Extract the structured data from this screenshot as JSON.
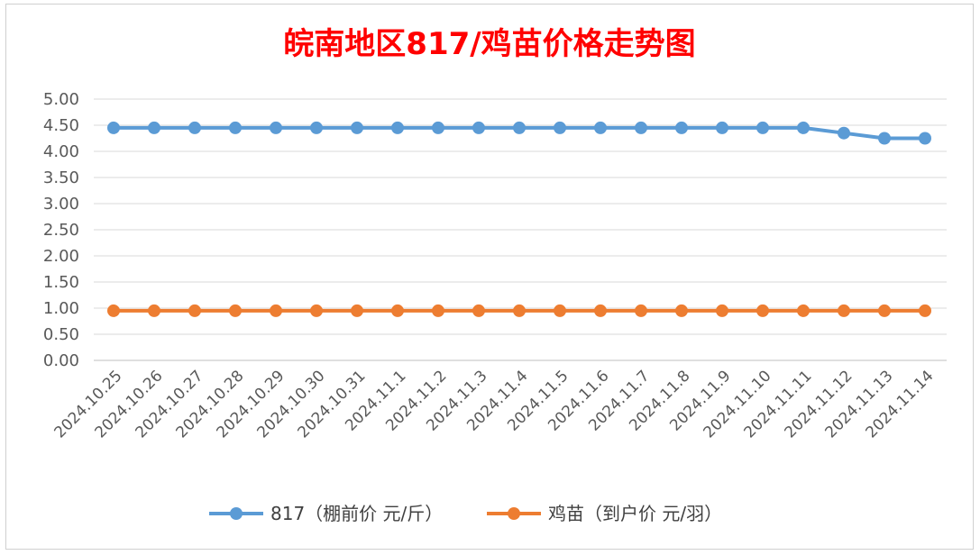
{
  "chart_data": {
    "type": "line",
    "title": "皖南地区817/鸡苗价格走势图",
    "categories": [
      "2024.10.25",
      "2024.10.26",
      "2024.10.27",
      "2024.10.28",
      "2024.10.29",
      "2024.10.30",
      "2024.10.31",
      "2024.11.1",
      "2024.11.2",
      "2024.11.3",
      "2024.11.4",
      "2024.11.5",
      "2024.11.6",
      "2024.11.7",
      "2024.11.8",
      "2024.11.9",
      "2024.11.10",
      "2024.11.11",
      "2024.11.12",
      "2024.11.13",
      "2024.11.14"
    ],
    "series": [
      {
        "name": "817（棚前价 元/斤）",
        "color": "#5b9bd5",
        "values": [
          4.45,
          4.45,
          4.45,
          4.45,
          4.45,
          4.45,
          4.45,
          4.45,
          4.45,
          4.45,
          4.45,
          4.45,
          4.45,
          4.45,
          4.45,
          4.45,
          4.45,
          4.45,
          4.35,
          4.25,
          4.25
        ]
      },
      {
        "name": "鸡苗（到户价 元/羽）",
        "color": "#ed7d31",
        "values": [
          0.95,
          0.95,
          0.95,
          0.95,
          0.95,
          0.95,
          0.95,
          0.95,
          0.95,
          0.95,
          0.95,
          0.95,
          0.95,
          0.95,
          0.95,
          0.95,
          0.95,
          0.95,
          0.95,
          0.95,
          0.95
        ]
      }
    ],
    "ylim": [
      0,
      5
    ],
    "yticks": [
      "0.00",
      "0.50",
      "1.00",
      "1.50",
      "2.00",
      "2.50",
      "3.00",
      "3.50",
      "4.00",
      "4.50",
      "5.00"
    ],
    "grid": true,
    "legend": "bottom"
  }
}
